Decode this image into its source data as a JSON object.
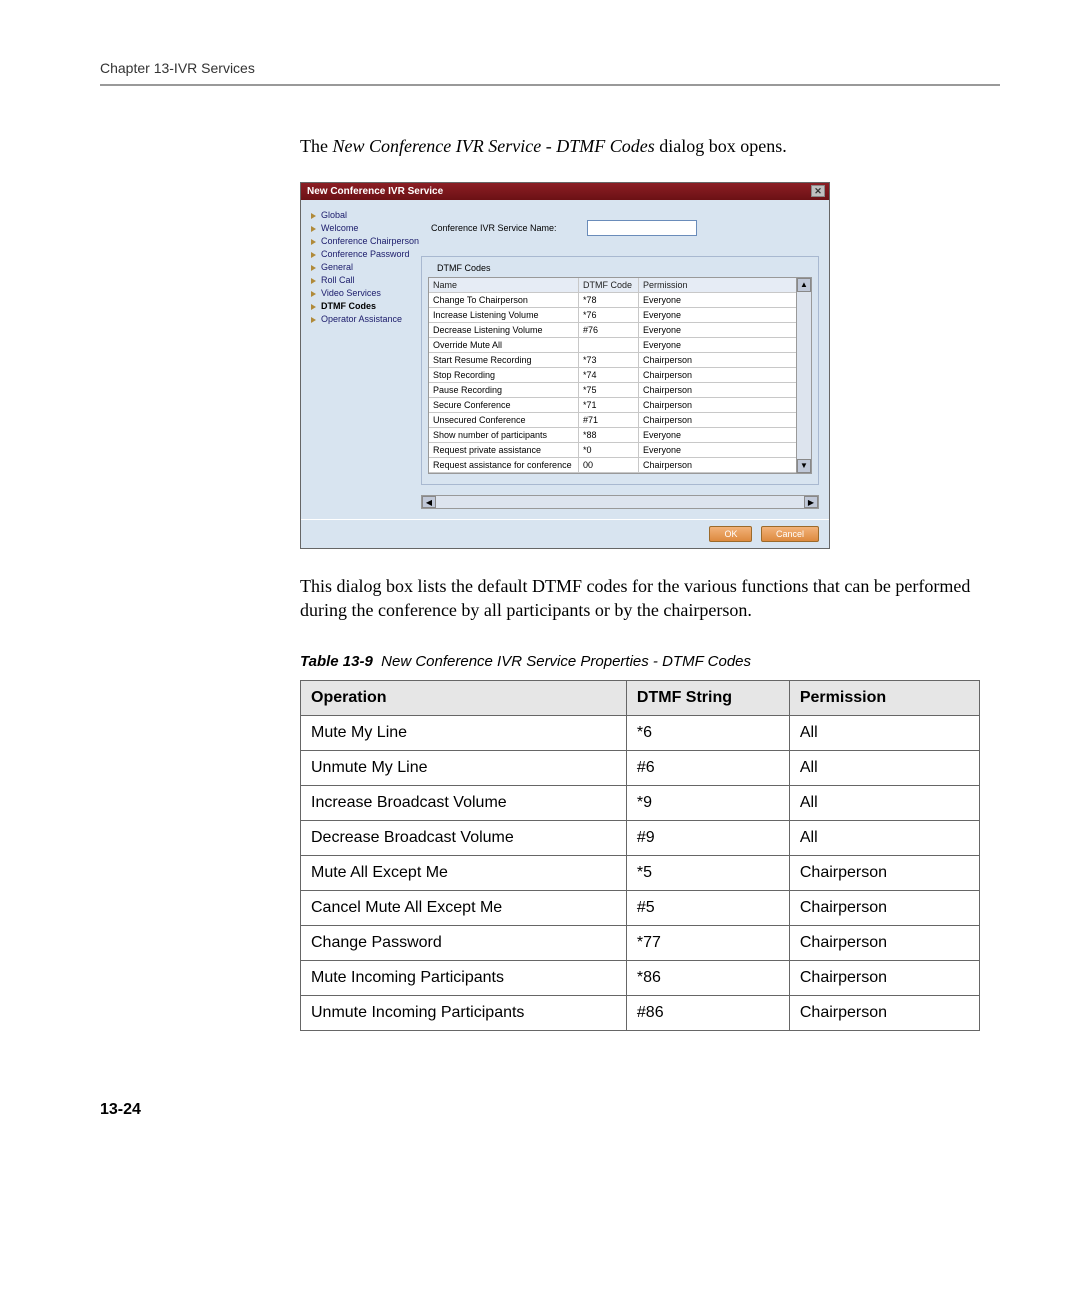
{
  "chapter_header": "Chapter 13-IVR Services",
  "intro": {
    "prefix": "The ",
    "italic": "New Conference IVR Service - DTMF Codes",
    "suffix": " dialog box opens."
  },
  "dialog": {
    "title": "New Conference IVR Service",
    "close_glyph": "✕",
    "nav_items": [
      {
        "label": "Global",
        "active": false
      },
      {
        "label": "Welcome",
        "active": false
      },
      {
        "label": "Conference Chairperson",
        "active": false
      },
      {
        "label": "Conference Password",
        "active": false
      },
      {
        "label": "General",
        "active": false
      },
      {
        "label": "Roll Call",
        "active": false
      },
      {
        "label": "Video Services",
        "active": false
      },
      {
        "label": "DTMF Codes",
        "active": true
      },
      {
        "label": "Operator Assistance",
        "active": false
      }
    ],
    "service_name_label": "Conference IVR Service Name:",
    "service_name_value": "",
    "fieldset_label": "DTMF Codes",
    "columns": [
      "Name",
      "DTMF Code",
      "Permission"
    ],
    "rows": [
      {
        "name": "Change To Chairperson",
        "code": "*78",
        "perm": "Everyone"
      },
      {
        "name": "Increase Listening Volume",
        "code": "*76",
        "perm": "Everyone"
      },
      {
        "name": "Decrease Listening Volume",
        "code": "#76",
        "perm": "Everyone"
      },
      {
        "name": "Override Mute All",
        "code": "",
        "perm": "Everyone"
      },
      {
        "name": "Start Resume Recording",
        "code": "*73",
        "perm": "Chairperson"
      },
      {
        "name": "Stop Recording",
        "code": "*74",
        "perm": "Chairperson"
      },
      {
        "name": "Pause Recording",
        "code": "*75",
        "perm": "Chairperson"
      },
      {
        "name": "Secure Conference",
        "code": "*71",
        "perm": "Chairperson"
      },
      {
        "name": "Unsecured Conference",
        "code": "#71",
        "perm": "Chairperson"
      },
      {
        "name": "Show number of participants",
        "code": "*88",
        "perm": "Everyone"
      },
      {
        "name": "Request private assistance",
        "code": "*0",
        "perm": "Everyone"
      },
      {
        "name": "Request assistance for conference",
        "code": "00",
        "perm": "Chairperson"
      }
    ],
    "ok_label": "OK",
    "cancel_label": "Cancel",
    "scroll_up": "▲",
    "scroll_down": "▼",
    "scroll_left": "◀",
    "scroll_right": "▶"
  },
  "description": "This dialog box lists the default DTMF codes for the various functions that can be performed during the conference by all participants or by the chairperson.",
  "table": {
    "caption_label": "Table 13-9",
    "caption_text": "New Conference IVR Service Properties - DTMF Codes",
    "columns": [
      "Operation",
      "DTMF String",
      "Permission"
    ],
    "rows": [
      {
        "op": "Mute My Line",
        "dtmf": "*6",
        "perm": "All"
      },
      {
        "op": "Unmute My Line",
        "dtmf": "#6",
        "perm": "All"
      },
      {
        "op": "Increase Broadcast Volume",
        "dtmf": "*9",
        "perm": "All"
      },
      {
        "op": "Decrease Broadcast Volume",
        "dtmf": "#9",
        "perm": "All"
      },
      {
        "op": "Mute All Except Me",
        "dtmf": "*5",
        "perm": "Chairperson"
      },
      {
        "op": "Cancel Mute All Except Me",
        "dtmf": "#5",
        "perm": "Chairperson"
      },
      {
        "op": "Change Password",
        "dtmf": "*77",
        "perm": "Chairperson"
      },
      {
        "op": "Mute Incoming Participants",
        "dtmf": "*86",
        "perm": "Chairperson"
      },
      {
        "op": "Unmute Incoming Participants",
        "dtmf": "#86",
        "perm": "Chairperson"
      }
    ]
  },
  "page_number": "13-24",
  "colors": {
    "title_bar": "#7a1a1f",
    "dialog_bg": "#d8e4f0",
    "button_bg": "#e6954a",
    "table_header_bg": "#e6e6e6",
    "rule": "#999999"
  }
}
